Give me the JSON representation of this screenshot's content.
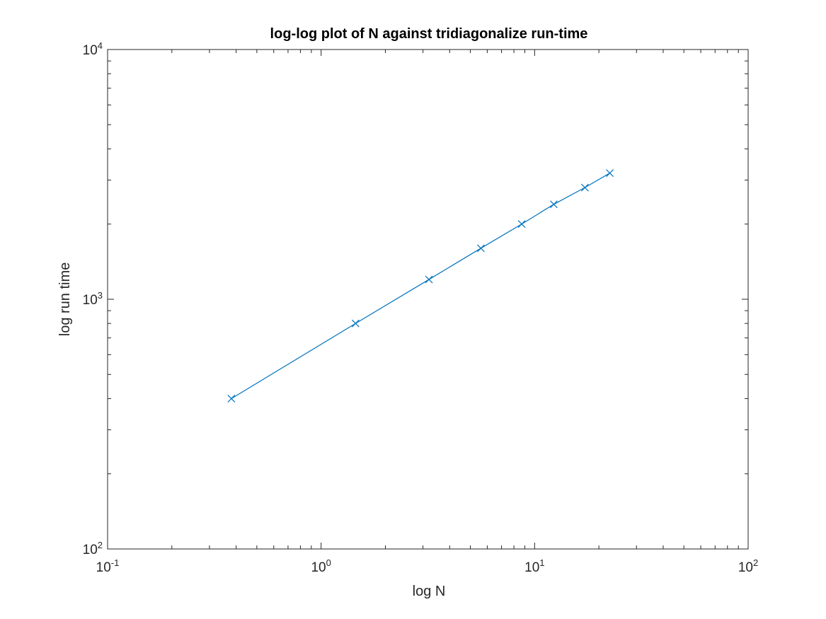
{
  "chart_data": {
    "type": "line",
    "title": "log-log plot of N against tridiagonalize run-time",
    "xlabel": "log N",
    "ylabel": "log run time",
    "xscale": "log",
    "yscale": "log",
    "xlim": [
      0.1,
      100
    ],
    "ylim": [
      100,
      10000
    ],
    "x_ticks": [
      {
        "base": "10",
        "exp": "-1"
      },
      {
        "base": "10",
        "exp": "0"
      },
      {
        "base": "10",
        "exp": "1"
      },
      {
        "base": "10",
        "exp": "2"
      }
    ],
    "y_ticks": [
      {
        "base": "10",
        "exp": "2"
      },
      {
        "base": "10",
        "exp": "3"
      },
      {
        "base": "10",
        "exp": "4"
      }
    ],
    "grid": false,
    "marker": "x",
    "series": [
      {
        "color": "#0072BD",
        "x": [
          0.38,
          1.45,
          3.2,
          5.6,
          8.7,
          12.3,
          17.2,
          22.5
        ],
        "y": [
          400,
          800,
          1200,
          1600,
          2000,
          2400,
          2800,
          3200
        ]
      }
    ]
  }
}
